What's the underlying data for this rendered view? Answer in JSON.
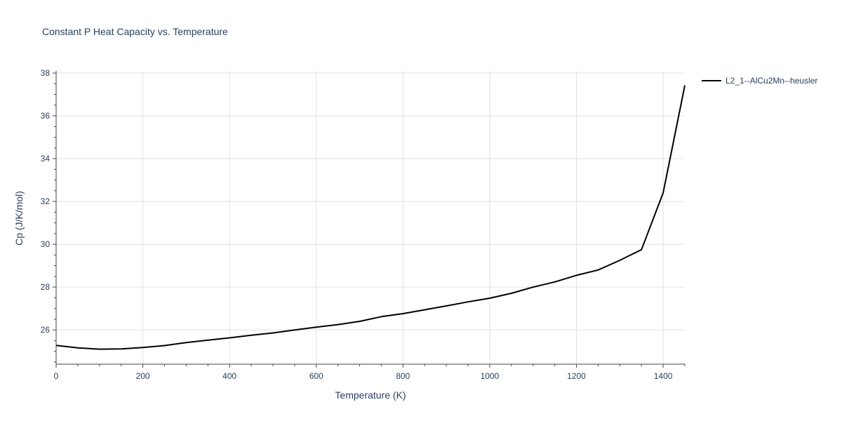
{
  "chart_data": {
    "type": "line",
    "title": "Constant P Heat Capacity vs. Temperature",
    "xlabel": "Temperature (K)",
    "ylabel": "Cp (J/K/mol)",
    "xlim": [
      0,
      1450
    ],
    "ylim": [
      24.4,
      38.1
    ],
    "x_ticks": [
      0,
      200,
      400,
      600,
      800,
      1000,
      1200,
      1400
    ],
    "y_ticks": [
      26,
      28,
      30,
      32,
      34,
      36,
      38
    ],
    "grid": true,
    "legend_position": "top-right",
    "series": [
      {
        "name": "L2_1--AlCu2Mn--heusler",
        "color": "#000000",
        "x": [
          0,
          50,
          100,
          150,
          200,
          250,
          300,
          350,
          400,
          450,
          500,
          550,
          600,
          650,
          700,
          750,
          800,
          850,
          900,
          950,
          1000,
          1050,
          1100,
          1150,
          1200,
          1250,
          1300,
          1350,
          1400,
          1450
        ],
        "y": [
          25.28,
          25.16,
          25.1,
          25.11,
          25.18,
          25.27,
          25.41,
          25.52,
          25.63,
          25.75,
          25.86,
          26.0,
          26.13,
          26.25,
          26.4,
          26.62,
          26.76,
          26.94,
          27.12,
          27.31,
          27.48,
          27.71,
          28.0,
          28.24,
          28.55,
          28.8,
          29.25,
          29.75,
          32.4,
          37.42
        ]
      }
    ]
  }
}
